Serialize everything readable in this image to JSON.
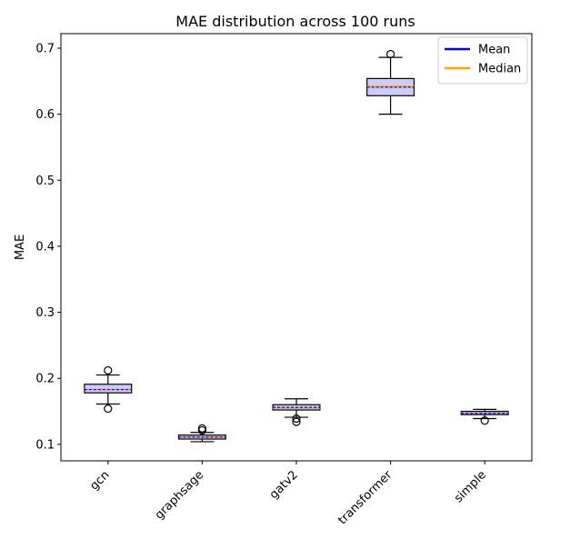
{
  "chart_data": {
    "type": "box",
    "title": "MAE distribution across 100 runs",
    "xlabel": "",
    "ylabel": "MAE",
    "ylim": [
      0.075,
      0.722
    ],
    "yticks": [
      0.1,
      0.2,
      0.3,
      0.4,
      0.5,
      0.6,
      0.7
    ],
    "ytick_labels": [
      "0.1",
      "0.2",
      "0.3",
      "0.4",
      "0.5",
      "0.6",
      "0.7"
    ],
    "categories": [
      "gcn",
      "graphsage",
      "gatv2",
      "transformer",
      "simple"
    ],
    "boxes": [
      {
        "whisker_low": 0.161,
        "q1": 0.178,
        "median": 0.183,
        "mean": 0.183,
        "q3": 0.191,
        "whisker_high": 0.205,
        "outliers": [
          0.212,
          0.154
        ]
      },
      {
        "whisker_low": 0.104,
        "q1": 0.108,
        "median": 0.111,
        "mean": 0.111,
        "q3": 0.114,
        "whisker_high": 0.118,
        "outliers": [
          0.124,
          0.121
        ]
      },
      {
        "whisker_low": 0.141,
        "q1": 0.152,
        "median": 0.155,
        "mean": 0.156,
        "q3": 0.16,
        "whisker_high": 0.169,
        "outliers": [
          0.139,
          0.134
        ]
      },
      {
        "whisker_low": 0.6,
        "q1": 0.628,
        "median": 0.642,
        "mean": 0.641,
        "q3": 0.654,
        "whisker_high": 0.686,
        "outliers": [
          0.691
        ]
      },
      {
        "whisker_low": 0.139,
        "q1": 0.145,
        "median": 0.148,
        "mean": 0.147,
        "q3": 0.15,
        "whisker_high": 0.153,
        "outliers": [
          0.136
        ]
      }
    ],
    "legend": {
      "placement": "top-right",
      "entries": [
        {
          "label": "Mean",
          "color": "#0000ff"
        },
        {
          "label": "Median",
          "color": "#ffa500"
        }
      ]
    },
    "colors": {
      "box_fill": "#ccccff",
      "mean_line": "#0000ff",
      "median_line": "#ffa500"
    },
    "grid": false
  }
}
